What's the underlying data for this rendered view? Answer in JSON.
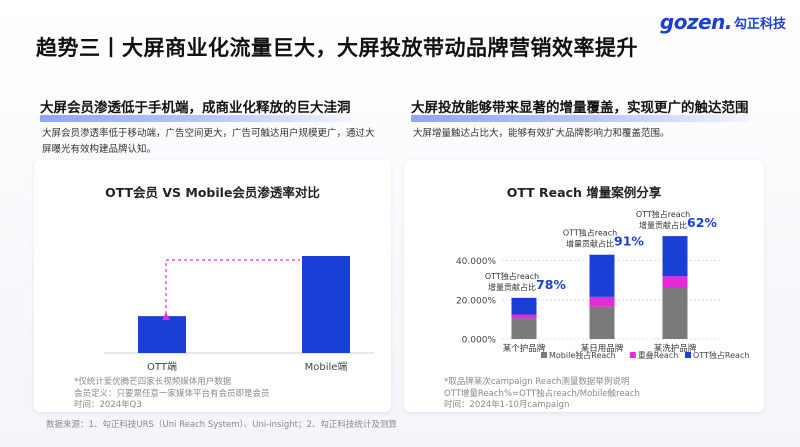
{
  "brand": {
    "mark": "gozen.",
    "name_cn": "勾正科技",
    "color": "#1a3fd6"
  },
  "title": "趋势三丨大屏商业化流量巨大，大屏投放带动品牌营销效率提升",
  "left": {
    "heading": "大屏会员渗透低于手机端，成商业化释放的巨大洼洞",
    "desc": "大屏会员渗透率低于移动端，广告空间更大，广告可触达用户规模更广，通过大屏曝光有效构建品牌认知。",
    "chart_title": "OTT会员 VS Mobile会员渗透率对比",
    "notes": [
      "*仅统计爱优腾芒四家长视频媒体用户数据",
      "会员定义：只要票任意一家媒体平台有会员即是会员",
      "时间：2024年Q3"
    ]
  },
  "right": {
    "heading": "大屏投放能够带来显著的增量覆盖，实现更广的触达范围",
    "desc": "大屏增量触达占比大，能够有效扩大品牌影响力和覆盖范围。",
    "chart_title": "OTT  Reach 增量案例分享",
    "notes": [
      "*取品牌某次campaign Reach测量数据举例说明",
      "OTT增量Reach%=OTT独占reach/Mobile触reach",
      "时间：2024年1-10月campaign"
    ]
  },
  "footer": "数据来源：1、勾正科技URS（Uni Reach System）、Uni-insight；2、勾正科技统计及测算",
  "chart_data": [
    {
      "type": "bar",
      "title": "OTT会员 VS Mobile会员渗透率对比",
      "categories": [
        "OTT端",
        "Mobile端"
      ],
      "values": [
        0.38,
        1.0
      ],
      "colors": [
        "#1a3fd6"
      ],
      "yaxis": "none",
      "annotation": "dashed arrow from OTT bar up to Mobile bar height"
    },
    {
      "type": "bar",
      "title": "OTT  Reach 增量案例分享",
      "stacked": true,
      "categories": [
        "某个护品牌",
        "某日用品牌",
        "某洗护品牌"
      ],
      "series": [
        {
          "name": "Mobile独占Reach",
          "color": "#7a7a7a",
          "values": [
            10.5,
            16.5,
            26.0
          ]
        },
        {
          "name": "重叠Reach",
          "color": "#e62ad8",
          "values": [
            2.0,
            5.0,
            6.0
          ]
        },
        {
          "name": "OTT独占Reach",
          "color": "#1a3fd6",
          "values": [
            8.5,
            21.5,
            20.5
          ]
        }
      ],
      "yticks": [
        "0.000%",
        "20.000%",
        "40.000%"
      ],
      "ylim": [
        0,
        48
      ],
      "callouts": [
        {
          "label_line1": "OTT独占reach",
          "label_line2": "增量贡献占比",
          "value": "78%"
        },
        {
          "label_line1": "OTT独占reach",
          "label_line2": "增量贡献占比",
          "value": "91%"
        },
        {
          "label_line1": "OTT独占reach",
          "label_line2": "增量贡献占比",
          "value": "62%"
        }
      ],
      "legend_position": "bottom"
    }
  ]
}
